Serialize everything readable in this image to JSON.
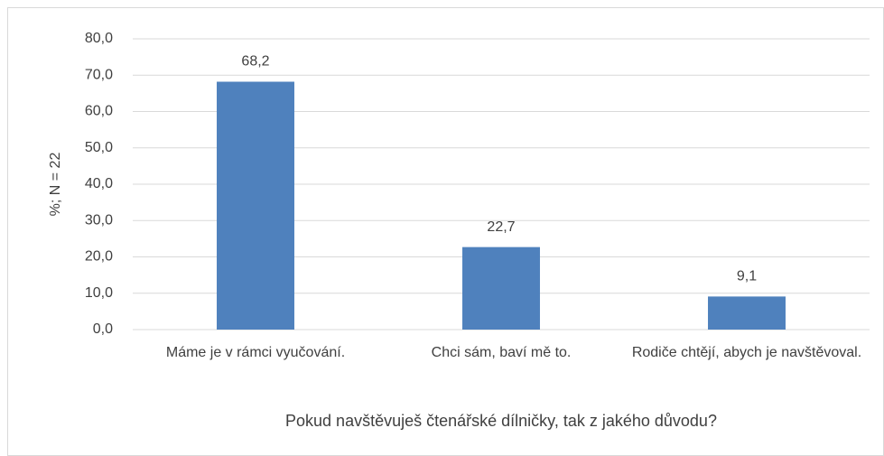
{
  "chart_data": {
    "type": "bar",
    "x_label": "Pokud navštěvuješ čtenářské dílničky, tak z jakého důvodu?",
    "y_label": "%; N = 22",
    "categories": [
      "Máme je v rámci vyučování.",
      "Chci sám, baví mě to.",
      "Rodiče chtějí, abych je navštěvoval."
    ],
    "values": [
      68.2,
      22.7,
      9.1
    ],
    "value_labels": [
      "68,2",
      "22,7",
      "9,1"
    ],
    "color": "#4f81bd",
    "ylim": [
      0,
      80
    ],
    "yticks": [
      {
        "value": 0,
        "label": "0,0"
      },
      {
        "value": 10,
        "label": "10,0"
      },
      {
        "value": 20,
        "label": "20,0"
      },
      {
        "value": 30,
        "label": "30,0"
      },
      {
        "value": 40,
        "label": "40,0"
      },
      {
        "value": 50,
        "label": "50,0"
      },
      {
        "value": 60,
        "label": "60,0"
      },
      {
        "value": 70,
        "label": "70,0"
      },
      {
        "value": 80,
        "label": "80,0"
      }
    ],
    "grid": true
  }
}
